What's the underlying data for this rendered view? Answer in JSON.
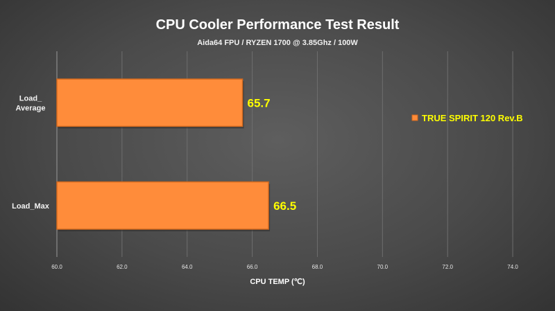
{
  "chart_data": {
    "type": "bar",
    "orientation": "horizontal",
    "title": "CPU Cooler Performance Test Result",
    "subtitle": "Aida64 FPU / RYZEN 1700 @ 3.85Ghz / 100W",
    "xlabel": "CPU TEMP (℃)",
    "ylabel": "",
    "categories": [
      "Load_ Average",
      "Load_Max"
    ],
    "category_lines": [
      [
        "Load_",
        "Average"
      ],
      [
        "Load_Max"
      ]
    ],
    "series": [
      {
        "name": "TRUE SPIRIT 120 Rev.B",
        "values": [
          65.7,
          66.5
        ]
      }
    ],
    "data_labels": [
      "65.7",
      "66.5"
    ],
    "xlim": [
      60.0,
      75.0
    ],
    "ticks": [
      "60.0",
      "62.0",
      "64.0",
      "66.0",
      "68.0",
      "70.0",
      "72.0",
      "74.0"
    ],
    "tick_values": [
      60,
      62,
      64,
      66,
      68,
      70,
      72,
      74
    ],
    "grid": true,
    "legend_position": "right",
    "colors": {
      "bar": "#ff8c3a",
      "bar_edge": "#d2691e",
      "data_label": "#ffff00",
      "legend_text": "#ffff00",
      "grid": "#6e6e6e"
    }
  }
}
